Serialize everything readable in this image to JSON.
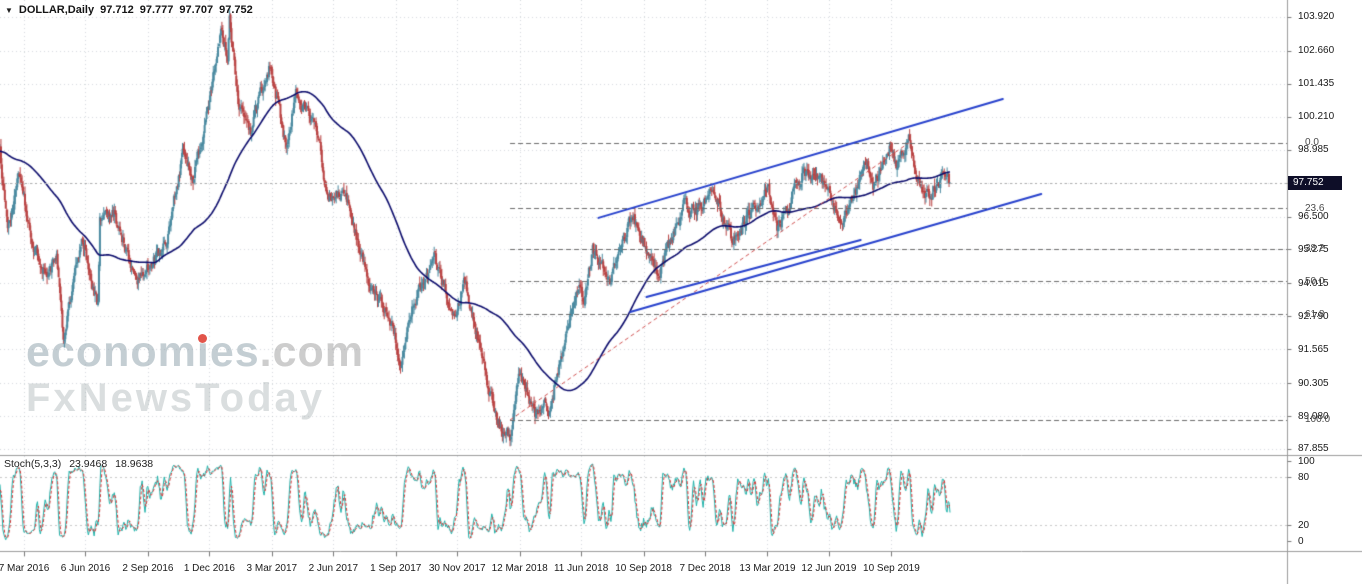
{
  "header": {
    "dropdown_icon": "▼",
    "symbol_label": "DOLLAR,Daily",
    "quote_open": "97.712",
    "quote_high": "97.777",
    "quote_low": "97.707",
    "quote_close": "97.752"
  },
  "watermark": {
    "brand_main": "econom",
    "brand_i": "i",
    "brand_tail": "es",
    "brand_tld": ".com",
    "subbrand": "FxNewsToday"
  },
  "colors": {
    "background": "#ffffff",
    "bull": "#4a8aa0",
    "bear": "#b94343",
    "ma": "#0b0b6b",
    "channel": "#2741cc",
    "grid": "#9aa4ad",
    "fib_line": "#6b6b6b",
    "fib_trend": "#d05050",
    "price_line": "#aaaaaa",
    "price_box_bg": "#0e0e28",
    "price_box_text": "#ffffff",
    "stoch_main": "#20b2aa",
    "stoch_signal": "#dd3333",
    "stoch_level": "#c8c8c8",
    "separator": "#9b9b9b",
    "axis_text": "#1a1a1a"
  },
  "chart_data": {
    "type": "candlestick",
    "symbol": "DOLLAR",
    "timeframe": "Daily",
    "current_price_label": "97.752",
    "last_values": {
      "open": 97.712,
      "high": 97.777,
      "low": 97.707,
      "close": 97.752
    },
    "price_scale": {
      "top": 104.552,
      "bottom": 87.631
    },
    "visible_range_days": 989,
    "y_ticks": [
      "103.920",
      "102.660",
      "101.435",
      "100.210",
      "98.985",
      "97.760",
      "96.500",
      "95.275",
      "94.015",
      "92.790",
      "91.565",
      "90.305",
      "89.080",
      "87.855"
    ],
    "x_ticks": [
      {
        "text": "7 Mar 2016",
        "d": 25
      },
      {
        "text": "6 Jun 2016",
        "d": 89
      },
      {
        "text": "2 Sep 2016",
        "d": 154
      },
      {
        "text": "1 Dec 2016",
        "d": 218
      },
      {
        "text": "3 Mar 2017",
        "d": 283
      },
      {
        "text": "2 Jun 2017",
        "d": 347
      },
      {
        "text": "1 Sep 2017",
        "d": 412
      },
      {
        "text": "30 Nov 2017",
        "d": 476
      },
      {
        "text": "12 Mar 2018",
        "d": 541
      },
      {
        "text": "11 Jun 2018",
        "d": 605
      },
      {
        "text": "10 Sep 2018",
        "d": 670
      },
      {
        "text": "7 Dec 2018",
        "d": 734
      },
      {
        "text": "13 Mar 2019",
        "d": 799
      },
      {
        "text": "12 Jun 2019",
        "d": 863
      },
      {
        "text": "10 Sep 2019",
        "d": 928
      }
    ],
    "price_path": [
      [
        0,
        98.9
      ],
      [
        8,
        95.9
      ],
      [
        20,
        98.2
      ],
      [
        25,
        97.2
      ],
      [
        32,
        95.8
      ],
      [
        49,
        94.2
      ],
      [
        59,
        95.1
      ],
      [
        66,
        91.9
      ],
      [
        85,
        95.6
      ],
      [
        102,
        93.2
      ],
      [
        104,
        96.4
      ],
      [
        119,
        96.6
      ],
      [
        142,
        94.1
      ],
      [
        167,
        95.2
      ],
      [
        174,
        95.7
      ],
      [
        190,
        98.8
      ],
      [
        201,
        97.9
      ],
      [
        218,
        100.8
      ],
      [
        230,
        103.6
      ],
      [
        237,
        102.4
      ],
      [
        239,
        103.8
      ],
      [
        249,
        100.4
      ],
      [
        261,
        99.8
      ],
      [
        281,
        102.1
      ],
      [
        298,
        99.1
      ],
      [
        308,
        101.0
      ],
      [
        331,
        99.6
      ],
      [
        341,
        97.2
      ],
      [
        359,
        97.4
      ],
      [
        385,
        93.9
      ],
      [
        409,
        92.4
      ],
      [
        417,
        91.1
      ],
      [
        431,
        93.4
      ],
      [
        452,
        94.9
      ],
      [
        473,
        92.9
      ],
      [
        484,
        94.1
      ],
      [
        496,
        92.1
      ],
      [
        514,
        89.3
      ],
      [
        520,
        88.7
      ],
      [
        531,
        88.3
      ],
      [
        540,
        90.5
      ],
      [
        558,
        89.1
      ],
      [
        573,
        89.6
      ],
      [
        602,
        94.0
      ],
      [
        608,
        93.4
      ],
      [
        617,
        95.3
      ],
      [
        635,
        94.1
      ],
      [
        658,
        96.6
      ],
      [
        684,
        94.3
      ],
      [
        712,
        96.9
      ],
      [
        724,
        96.6
      ],
      [
        744,
        97.5
      ],
      [
        761,
        95.7
      ],
      [
        800,
        97.5
      ],
      [
        809,
        96.0
      ],
      [
        836,
        98.1
      ],
      [
        855,
        97.9
      ],
      [
        877,
        96.2
      ],
      [
        903,
        98.5
      ],
      [
        909,
        97.6
      ],
      [
        926,
        99.0
      ],
      [
        934,
        98.3
      ],
      [
        946,
        99.35
      ],
      [
        960,
        97.4
      ],
      [
        969,
        97.2
      ],
      [
        979,
        98.0
      ],
      [
        989,
        97.75
      ]
    ],
    "moving_average": {
      "period": 100,
      "color": "#0b0b6b"
    },
    "trend_lines": [
      {
        "name": "channel-upper",
        "d1": 623,
        "p1": 96.45,
        "d2": 1044,
        "p2": 100.87,
        "width": 2
      },
      {
        "name": "channel-lower",
        "d1": 656,
        "p1": 92.95,
        "d2": 1084,
        "p2": 97.34,
        "width": 2
      },
      {
        "name": "channel-inner",
        "d1": 673,
        "p1": 93.51,
        "d2": 896,
        "p2": 95.63,
        "width": 2
      }
    ],
    "fibonacci": {
      "d_low": 531,
      "d_high": 946,
      "price_low": 88.933,
      "price_high": 99.234,
      "levels": [
        {
          "label": "0.0",
          "value": 0
        },
        {
          "label": "23.6",
          "value": 23.6
        },
        {
          "label": "38.2",
          "value": 38.2
        },
        {
          "label": "50.0",
          "value": 50
        },
        {
          "label": "61.8",
          "value": 61.8
        },
        {
          "label": "100.0",
          "value": 100
        }
      ]
    },
    "stochastic": {
      "label": "Stoch(5,3,3)",
      "k_period": 5,
      "slowing": 3,
      "d_period": 3,
      "k_value": "23.9468",
      "d_value": "18.9638",
      "levels": [
        20,
        80
      ],
      "axis": [
        {
          "text": "100",
          "v": 100
        },
        {
          "text": "80",
          "v": 80
        },
        {
          "text": "20",
          "v": 20
        },
        {
          "text": "0",
          "v": 0
        }
      ]
    }
  }
}
